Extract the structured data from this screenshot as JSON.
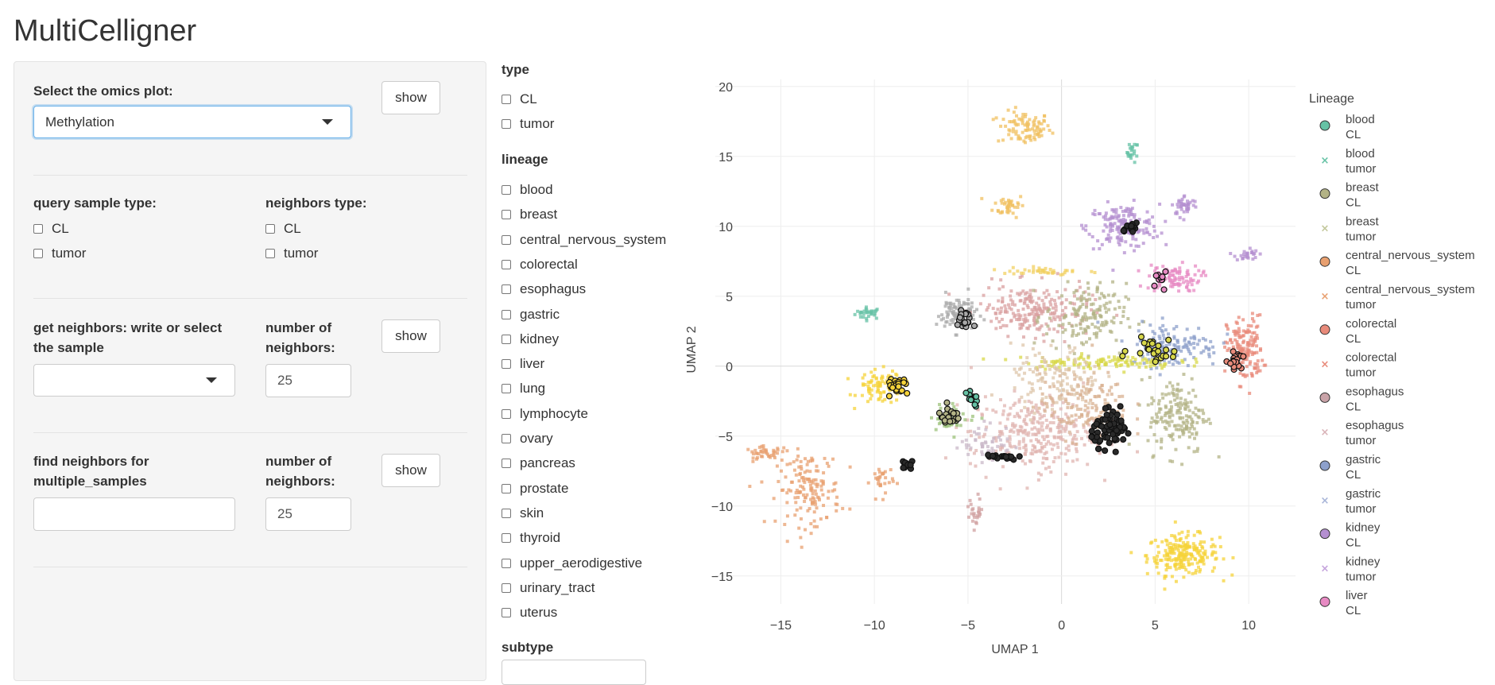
{
  "app": {
    "title": "MultiCelligner"
  },
  "sidebar": {
    "omics_label": "Select the omics plot:",
    "omics_value": "Methylation",
    "show_label": "show",
    "query_type_label": "query sample type:",
    "neighbors_type_label": "neighbors type:",
    "cl_label": "CL",
    "tumor_label": "tumor",
    "get_neighbors_label": "get neighbors: write or select the sample",
    "number_of_neighbors_label": "number of neighbors:",
    "get_neighbors_value": "",
    "n_neighbors_1": "25",
    "find_multi_label": "find neighbors for multiple_samples",
    "multi_value": "",
    "n_neighbors_2": "25"
  },
  "filters": {
    "type_title": "type",
    "type_options": [
      "CL",
      "tumor"
    ],
    "lineage_title": "lineage",
    "lineage_options": [
      "blood",
      "breast",
      "central_nervous_system",
      "colorectal",
      "esophagus",
      "gastric",
      "kidney",
      "liver",
      "lung",
      "lymphocyte",
      "ovary",
      "pancreas",
      "prostate",
      "skin",
      "thyroid",
      "upper_aerodigestive",
      "urinary_tract",
      "uterus"
    ],
    "subtype_title": "subtype"
  },
  "chart_data": {
    "type": "scatter",
    "xlabel": "UMAP 1",
    "ylabel": "UMAP 2",
    "xlim": [
      -18.5,
      12.5
    ],
    "ylim": [
      -17,
      20.5
    ],
    "xticks": [
      -15,
      -10,
      -5,
      0,
      5,
      10
    ],
    "yticks": [
      -15,
      -10,
      -5,
      0,
      5,
      10,
      15,
      20
    ],
    "grid": true,
    "legend_title": "Lineage",
    "legend_position": "right",
    "legend": [
      {
        "l1": "blood",
        "l2": "CL",
        "marker": "circle",
        "color": "#66c2a5"
      },
      {
        "l1": "blood",
        "l2": "tumor",
        "marker": "x",
        "color": "#66c2a5"
      },
      {
        "l1": "breast",
        "l2": "CL",
        "marker": "circle",
        "color": "#b3b386"
      },
      {
        "l1": "breast",
        "l2": "tumor",
        "marker": "x",
        "color": "#c2c79a"
      },
      {
        "l1": "central_nervous_system",
        "l2": "CL",
        "marker": "circle",
        "color": "#e8a070"
      },
      {
        "l1": "central_nervous_system",
        "l2": "tumor",
        "marker": "x",
        "color": "#e8a070"
      },
      {
        "l1": "colorectal",
        "l2": "CL",
        "marker": "circle",
        "color": "#e88a7a"
      },
      {
        "l1": "colorectal",
        "l2": "tumor",
        "marker": "x",
        "color": "#e88a7a"
      },
      {
        "l1": "esophagus",
        "l2": "CL",
        "marker": "circle",
        "color": "#c9a3a8"
      },
      {
        "l1": "esophagus",
        "l2": "tumor",
        "marker": "x",
        "color": "#d9b3b8"
      },
      {
        "l1": "gastric",
        "l2": "CL",
        "marker": "circle",
        "color": "#8da0cb"
      },
      {
        "l1": "gastric",
        "l2": "tumor",
        "marker": "x",
        "color": "#a7b4d8"
      },
      {
        "l1": "kidney",
        "l2": "CL",
        "marker": "circle",
        "color": "#b48fd0"
      },
      {
        "l1": "kidney",
        "l2": "tumor",
        "marker": "x",
        "color": "#c4a3dc"
      },
      {
        "l1": "liver",
        "l2": "CL",
        "marker": "circle",
        "color": "#e78ac3"
      }
    ],
    "clusters": [
      {
        "lineage": "blood",
        "color": "#66c2a5",
        "cx": -10.3,
        "cy": 3.8,
        "sx": 0.6,
        "sy": 0.35,
        "n": 30
      },
      {
        "lineage": "blood",
        "color": "#66c2a5",
        "cx": 3.8,
        "cy": 15.3,
        "sx": 0.25,
        "sy": 0.6,
        "n": 22
      },
      {
        "lineage": "thyroid",
        "color": "#f0c060",
        "cx": -2.0,
        "cy": 17.0,
        "sx": 1.2,
        "sy": 1.0,
        "n": 90
      },
      {
        "lineage": "thyroid",
        "color": "#f0c060",
        "cx": -2.8,
        "cy": 11.5,
        "sx": 0.7,
        "sy": 0.7,
        "n": 40
      },
      {
        "lineage": "lymphocyte",
        "color": "#f5d33a",
        "cx": 6.5,
        "cy": -13.5,
        "sx": 1.6,
        "sy": 1.2,
        "n": 220
      },
      {
        "lineage": "lymphocyte",
        "color": "#f5d33a",
        "cx": -9.7,
        "cy": -1.5,
        "sx": 1.0,
        "sy": 1.0,
        "n": 80
      },
      {
        "lineage": "kidney",
        "color": "#b48fd0",
        "cx": 3.3,
        "cy": 10.0,
        "sx": 1.6,
        "sy": 1.3,
        "n": 160
      },
      {
        "lineage": "kidney",
        "color": "#b48fd0",
        "cx": 6.6,
        "cy": 11.5,
        "sx": 0.6,
        "sy": 0.6,
        "n": 40
      },
      {
        "lineage": "kidney",
        "color": "#b48fd0",
        "cx": 9.9,
        "cy": 8.0,
        "sx": 0.5,
        "sy": 0.4,
        "n": 25
      },
      {
        "lineage": "liver",
        "color": "#e78ac3",
        "cx": 6.0,
        "cy": 6.3,
        "sx": 1.2,
        "sy": 0.8,
        "n": 90
      },
      {
        "lineage": "colorectal",
        "color": "#e88a7a",
        "cx": 9.8,
        "cy": 1.2,
        "sx": 0.8,
        "sy": 2.0,
        "n": 150
      },
      {
        "lineage": "central_nervous_system",
        "color": "#e8a070",
        "cx": -13.5,
        "cy": -8.8,
        "sx": 1.4,
        "sy": 2.2,
        "n": 150
      },
      {
        "lineage": "central_nervous_system",
        "color": "#e8a070",
        "cx": -15.8,
        "cy": -6.2,
        "sx": 0.9,
        "sy": 0.35,
        "n": 40
      },
      {
        "lineage": "central_nervous_system",
        "color": "#e8a070",
        "cx": -9.6,
        "cy": -8.2,
        "sx": 0.5,
        "sy": 1.0,
        "n": 30
      },
      {
        "lineage": "skin",
        "color": "#a9a9a9",
        "cx": -5.6,
        "cy": 3.8,
        "sx": 0.9,
        "sy": 1.1,
        "n": 80
      },
      {
        "lineage": "esophagus",
        "color": "#d9a0a0",
        "cx": -1.5,
        "cy": 4.0,
        "sx": 2.5,
        "sy": 1.5,
        "n": 220
      },
      {
        "lineage": "breast",
        "color": "#b3b386",
        "cx": 1.3,
        "cy": 3.5,
        "sx": 1.8,
        "sy": 2.0,
        "n": 150
      },
      {
        "lineage": "breast",
        "color": "#b3b386",
        "cx": 6.2,
        "cy": -3.5,
        "sx": 1.3,
        "sy": 2.3,
        "n": 170
      },
      {
        "lineage": "gastric",
        "color": "#8da0cb",
        "cx": 6.0,
        "cy": 1.5,
        "sx": 2.0,
        "sy": 1.3,
        "n": 130
      },
      {
        "lineage": "esophagus",
        "color": "#e0b4b0",
        "cx": -1.5,
        "cy": -4.8,
        "sx": 2.8,
        "sy": 2.2,
        "n": 300
      },
      {
        "lineage": "pancreas",
        "color": "#d8b090",
        "cx": 1.2,
        "cy": -2.8,
        "sx": 2.0,
        "sy": 2.0,
        "n": 150
      },
      {
        "lineage": "uterus",
        "color": "#c9b8c8",
        "cx": -4.0,
        "cy": -5.5,
        "sx": 1.2,
        "sy": 1.2,
        "n": 50
      },
      {
        "lineage": "prostate",
        "color": "#d0a0a0",
        "cx": -4.6,
        "cy": -10.5,
        "sx": 0.35,
        "sy": 1.0,
        "n": 25
      },
      {
        "lineage": "upper_aerodigestive",
        "color": "#9cc27a",
        "cx": -5.8,
        "cy": -3.6,
        "sx": 1.0,
        "sy": 0.8,
        "n": 45
      },
      {
        "lineage": "ovary",
        "color": "#d8d84a",
        "cx": 2.0,
        "cy": 0.3,
        "sx": 3.5,
        "sy": 0.4,
        "n": 120
      },
      {
        "lineage": "ovary",
        "color": "#f2d060",
        "cx": -1.0,
        "cy": 6.8,
        "sx": 1.8,
        "sy": 0.3,
        "n": 40
      },
      {
        "lineage": "lung",
        "color": "#ddc6aa",
        "cx": -0.3,
        "cy": -1.0,
        "sx": 2.0,
        "sy": 2.0,
        "n": 120
      }
    ],
    "highlighted": [
      {
        "cx": 2.7,
        "cy": -4.5,
        "sx": 0.9,
        "sy": 1.0,
        "n": 70,
        "color": "#2a2a2a"
      },
      {
        "cx": -8.7,
        "cy": -1.5,
        "sx": 0.5,
        "sy": 0.6,
        "n": 25,
        "color": "#f5d33a"
      },
      {
        "cx": -6.0,
        "cy": -3.6,
        "sx": 0.5,
        "sy": 0.5,
        "n": 22,
        "color": "#b3b386"
      },
      {
        "cx": -4.8,
        "cy": -2.4,
        "sx": 0.4,
        "sy": 0.4,
        "n": 18,
        "color": "#66c2a5"
      },
      {
        "cx": -5.2,
        "cy": 3.2,
        "sx": 0.4,
        "sy": 0.8,
        "n": 20,
        "color": "#a9a9a9"
      },
      {
        "cx": -3.2,
        "cy": -6.5,
        "sx": 0.7,
        "sy": 0.2,
        "n": 18,
        "color": "#2a2a2a"
      },
      {
        "cx": -8.2,
        "cy": -7.0,
        "sx": 0.3,
        "sy": 0.3,
        "n": 10,
        "color": "#2a2a2a"
      },
      {
        "cx": 3.6,
        "cy": 9.9,
        "sx": 0.5,
        "sy": 0.3,
        "n": 15,
        "color": "#2a2a2a"
      },
      {
        "cx": 4.9,
        "cy": 1.2,
        "sx": 1.0,
        "sy": 0.7,
        "n": 25,
        "color": "#d8d84a"
      },
      {
        "cx": 9.3,
        "cy": 0.8,
        "sx": 0.6,
        "sy": 1.0,
        "n": 18,
        "color": "#e88a7a"
      },
      {
        "cx": 5.3,
        "cy": 6.3,
        "sx": 0.4,
        "sy": 0.6,
        "n": 10,
        "color": "#e78ac3"
      }
    ]
  }
}
